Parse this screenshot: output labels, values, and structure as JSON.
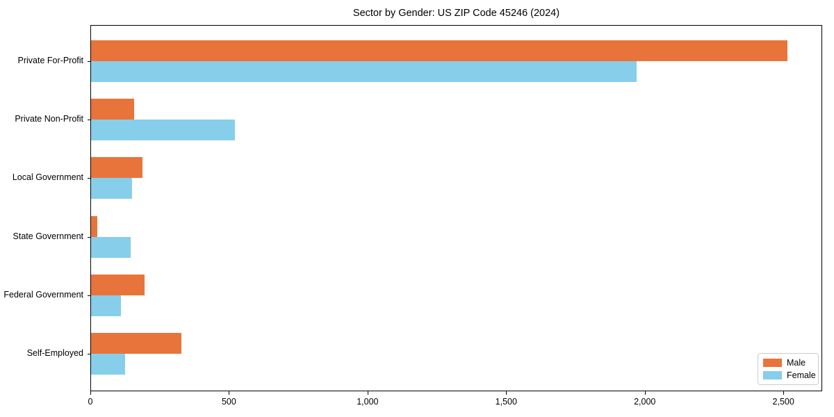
{
  "title": "Sector by Gender: US ZIP Code 45246 (2024)",
  "chart_data": {
    "type": "bar",
    "orientation": "horizontal",
    "title": "Sector by Gender: US ZIP Code 45246 (2024)",
    "categories": [
      "Private For-Profit",
      "Private Non-Profit",
      "Local Government",
      "State Government",
      "Federal Government",
      "Self-Employed"
    ],
    "series": [
      {
        "name": "Male",
        "color": "#E8743B",
        "values": [
          2512,
          155,
          185,
          22,
          193,
          326
        ]
      },
      {
        "name": "Female",
        "color": "#87CEEB",
        "values": [
          1968,
          520,
          148,
          143,
          108,
          122
        ]
      }
    ],
    "xlabel": "",
    "ylabel": "",
    "xlim": [
      0,
      2640
    ],
    "x_ticks": [
      0,
      500,
      1000,
      1500,
      2000,
      2500
    ],
    "x_tick_labels": [
      "0",
      "500",
      "1,000",
      "1,500",
      "2,000",
      "2,500"
    ],
    "grid": false,
    "legend": {
      "position": "lower right"
    },
    "colors": {
      "male": "#E8743B",
      "female": "#87CEEB",
      "axis": "#000000",
      "legend_border": "#cccccc"
    }
  }
}
